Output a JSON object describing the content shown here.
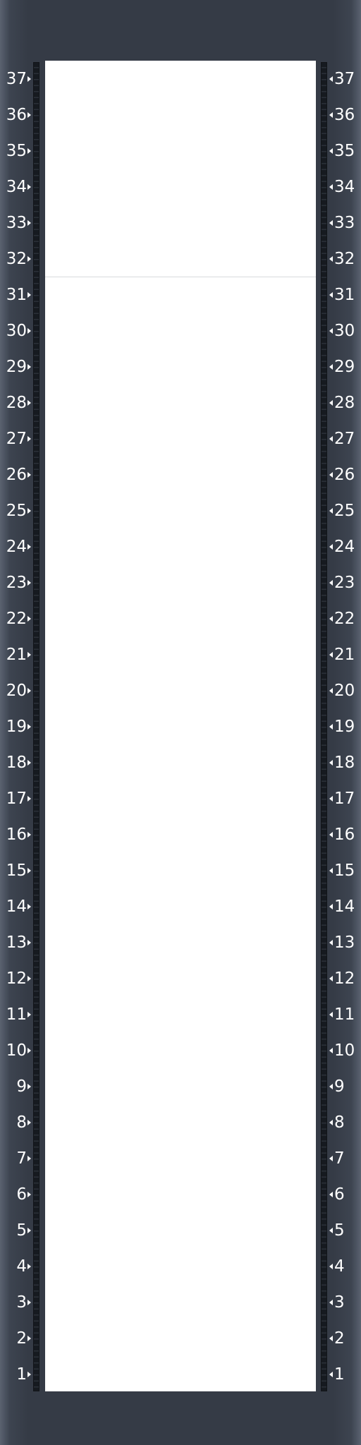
{
  "rack": {
    "units": [
      "37",
      "36",
      "35",
      "34",
      "33",
      "32",
      "31",
      "30",
      "29",
      "28",
      "27",
      "26",
      "25",
      "24",
      "23",
      "22",
      "21",
      "20",
      "19",
      "18",
      "17",
      "16",
      "15",
      "14",
      "13",
      "12",
      "11",
      "10",
      "9",
      "8",
      "7",
      "6",
      "5",
      "4",
      "3",
      "2",
      "1"
    ],
    "installed_device": {
      "top_unit": 37,
      "bottom_unit": 32
    },
    "colors": {
      "frame": "#353b46",
      "rail": "#161a20",
      "bay": "#ffffff",
      "label": "#ffffff"
    }
  }
}
